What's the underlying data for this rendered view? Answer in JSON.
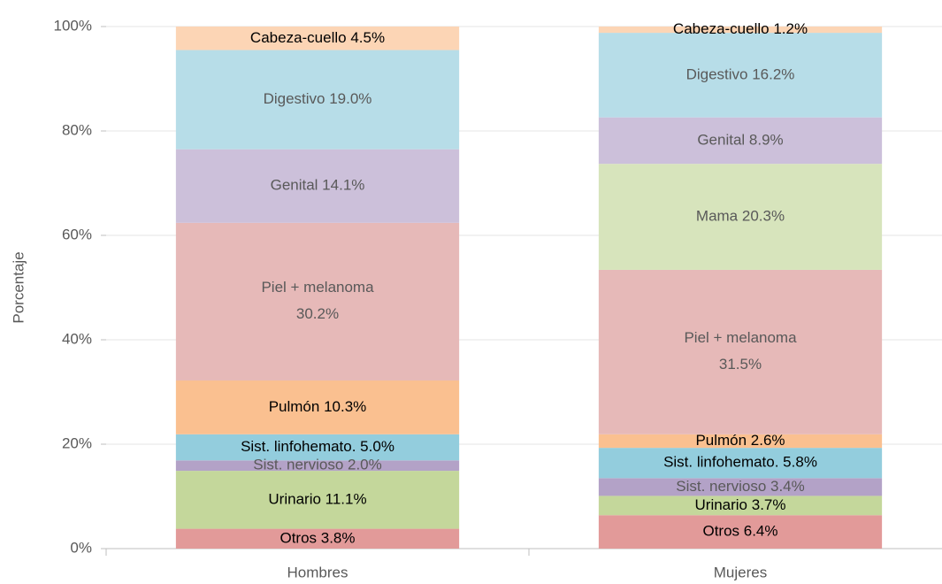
{
  "chart_data": {
    "type": "stacked_bar",
    "y_label": "Porcentaje",
    "categories": [
      "Hombres",
      "Mujeres"
    ],
    "series": [
      {
        "name": "Otros",
        "color": "#e29a99",
        "label_color": "#000000",
        "values": [
          3.8,
          6.4
        ],
        "value_labels": [
          "Otros 3.8%",
          "Otros 6.4%"
        ]
      },
      {
        "name": "Urinario",
        "color": "#c4d79b",
        "label_color": "#000000",
        "values": [
          11.1,
          3.7
        ],
        "value_labels": [
          "Urinario 11.1%",
          "Urinario 3.7%"
        ]
      },
      {
        "name": "Sist. nervioso",
        "color": "#b3a2c7",
        "label_color": "#595959",
        "values": [
          2.0,
          3.4
        ],
        "value_labels": [
          "Sist. nervioso 2.0%",
          "Sist. nervioso 3.4%"
        ]
      },
      {
        "name": "Sist. linfohemato.",
        "color": "#93cddd",
        "label_color": "#000000",
        "values": [
          5.0,
          5.8
        ],
        "value_labels": [
          "Sist. linfohemato. 5.0%",
          "Sist. linfohemato. 5.8%"
        ]
      },
      {
        "name": "Pulmón",
        "color": "#fac090",
        "label_color": "#000000",
        "values": [
          10.3,
          2.6
        ],
        "value_labels": [
          "Pulmón 10.3%",
          "Pulmón 2.6%"
        ]
      },
      {
        "name": "Piel + melanoma",
        "color": "#e6b9b8",
        "label_color": "#595959",
        "values": [
          30.2,
          31.5
        ],
        "value_labels": [
          "Piel + melanoma 30.2%",
          "Piel + melanoma 31.5%"
        ]
      },
      {
        "name": "Mama",
        "color": "#d7e4bc",
        "label_color": "#595959",
        "values": [
          null,
          20.3
        ],
        "value_labels": [
          null,
          "Mama 20.3%"
        ]
      },
      {
        "name": "Genital",
        "color": "#ccc0da",
        "label_color": "#595959",
        "values": [
          14.1,
          8.9
        ],
        "value_labels": [
          "Genital 14.1%",
          "Genital 8.9%"
        ]
      },
      {
        "name": "Digestivo",
        "color": "#b7dde8",
        "label_color": "#595959",
        "values": [
          19.0,
          16.2
        ],
        "value_labels": [
          "Digestivo 19.0%",
          "Digestivo 16.2%"
        ]
      },
      {
        "name": "Cabeza-cuello",
        "color": "#fcd5b5",
        "label_color": "#000000",
        "values": [
          4.5,
          1.2
        ],
        "value_labels": [
          "Cabeza-cuello 4.5%",
          "Cabeza-cuello 1.2%"
        ]
      }
    ],
    "ylim": [
      0,
      100
    ],
    "yticks": [
      {
        "value": 0,
        "label": "0%"
      },
      {
        "value": 20,
        "label": "20%"
      },
      {
        "value": 40,
        "label": "40%"
      },
      {
        "value": 60,
        "label": "60%"
      },
      {
        "value": 80,
        "label": "80%"
      },
      {
        "value": 100,
        "label": "100%"
      }
    ],
    "grid": true
  }
}
